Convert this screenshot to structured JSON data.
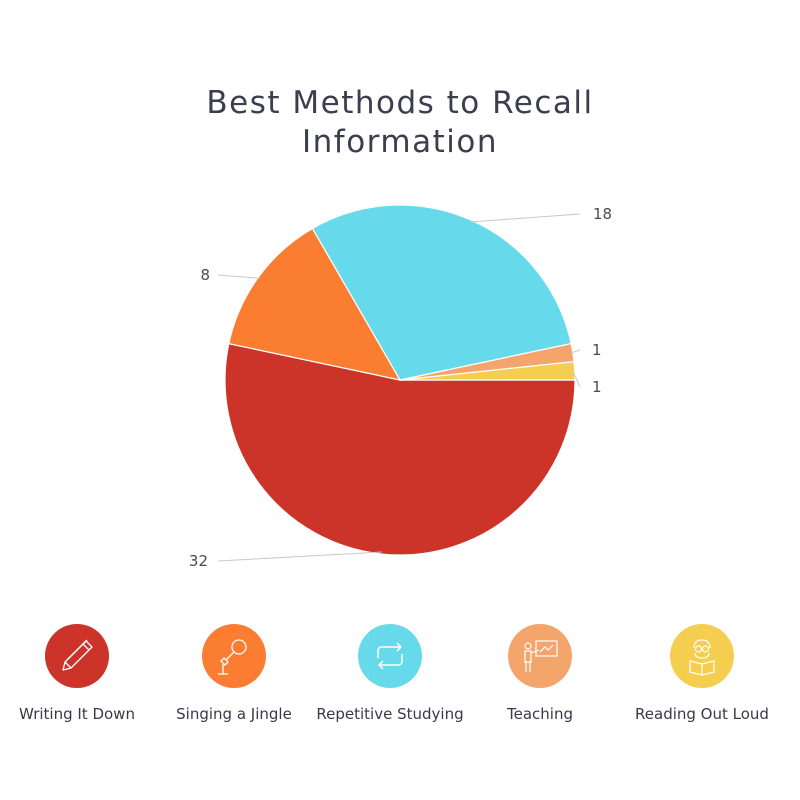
{
  "chart_data": {
    "type": "pie",
    "title_lines": [
      "Best Methods to Recall",
      "Information"
    ],
    "categories": [
      "Writing It Down",
      "Singing a Jingle",
      "Repetitive Studying",
      "Teaching",
      "Reading Out Loud"
    ],
    "values": [
      32,
      8,
      18,
      1,
      1
    ],
    "colors": [
      "#cc3329",
      "#fb7d31",
      "#66d9eb",
      "#f3a56c",
      "#f6ce4f"
    ],
    "label_text": [
      "32",
      "8",
      "18",
      "1",
      "1"
    ]
  },
  "legend": [
    {
      "label": "Writing It Down",
      "color": "#cc3329",
      "icon": "pencil-icon"
    },
    {
      "label": "Singing a Jingle",
      "color": "#fb7d31",
      "icon": "microphone-icon"
    },
    {
      "label": "Repetitive Studying",
      "color": "#66d9eb",
      "icon": "repeat-icon"
    },
    {
      "label": "Teaching",
      "color": "#f3a56c",
      "icon": "teacher-board-icon"
    },
    {
      "label": "Reading Out Loud",
      "color": "#f6ce4f",
      "icon": "reading-person-icon"
    }
  ]
}
